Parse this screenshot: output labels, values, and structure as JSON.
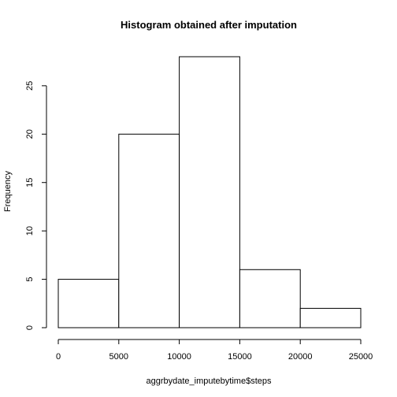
{
  "chart_data": {
    "type": "bar",
    "title": "Histogram obtained after imputation",
    "xlabel": "aggrbydate_imputebytime$steps",
    "ylabel": "Frequency",
    "bins": [
      {
        "from": 0,
        "to": 5000,
        "count": 5
      },
      {
        "from": 5000,
        "to": 10000,
        "count": 20
      },
      {
        "from": 10000,
        "to": 15000,
        "count": 28
      },
      {
        "from": 15000,
        "to": 20000,
        "count": 6
      },
      {
        "from": 20000,
        "to": 25000,
        "count": 2
      }
    ],
    "xlim": [
      0,
      25000
    ],
    "ylim": [
      0,
      28
    ],
    "xticks": [
      0,
      5000,
      10000,
      15000,
      20000,
      25000
    ],
    "yticks": [
      0,
      5,
      10,
      15,
      20,
      25
    ],
    "grid": false,
    "bar_color": "#ffffff",
    "edge_color": "#000000"
  }
}
